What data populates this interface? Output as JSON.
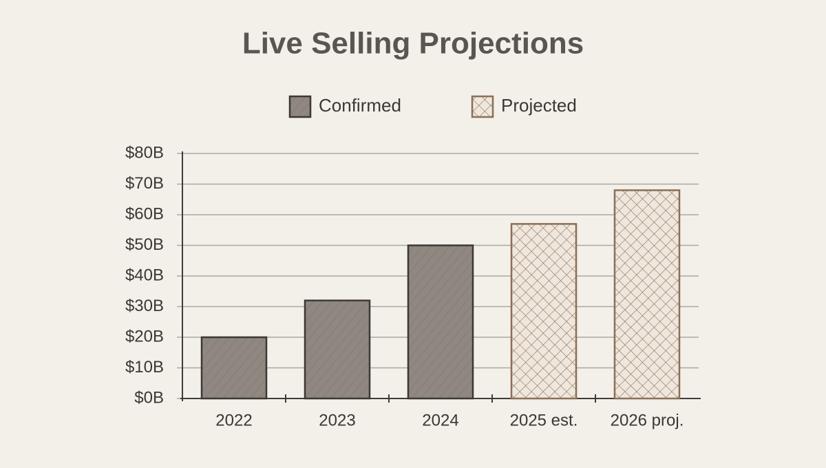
{
  "chart_data": {
    "type": "bar",
    "title": "Live Selling Projections",
    "categories": [
      "2022",
      "2023",
      "2024",
      "2025 est.",
      "2026 proj."
    ],
    "series": [
      {
        "name": "Confirmed",
        "color": "#8f8780",
        "values": [
          20,
          32,
          50,
          null,
          null
        ]
      },
      {
        "name": "Projected",
        "color": "#8b6f55",
        "values": [
          null,
          null,
          null,
          57,
          68
        ]
      }
    ],
    "ylim": [
      0,
      80
    ],
    "yticks": [
      {
        "value": 0,
        "label": "$0B"
      },
      {
        "value": 10,
        "label": "$10B"
      },
      {
        "value": 20,
        "label": "$20B"
      },
      {
        "value": 30,
        "label": "$30B"
      },
      {
        "value": 40,
        "label": "$40B"
      },
      {
        "value": 50,
        "label": "$50B"
      },
      {
        "value": 60,
        "label": "$60B"
      },
      {
        "value": 70,
        "label": "$70B"
      },
      {
        "value": 80,
        "label": "$80B"
      }
    ],
    "grid": true,
    "legend": "top"
  }
}
